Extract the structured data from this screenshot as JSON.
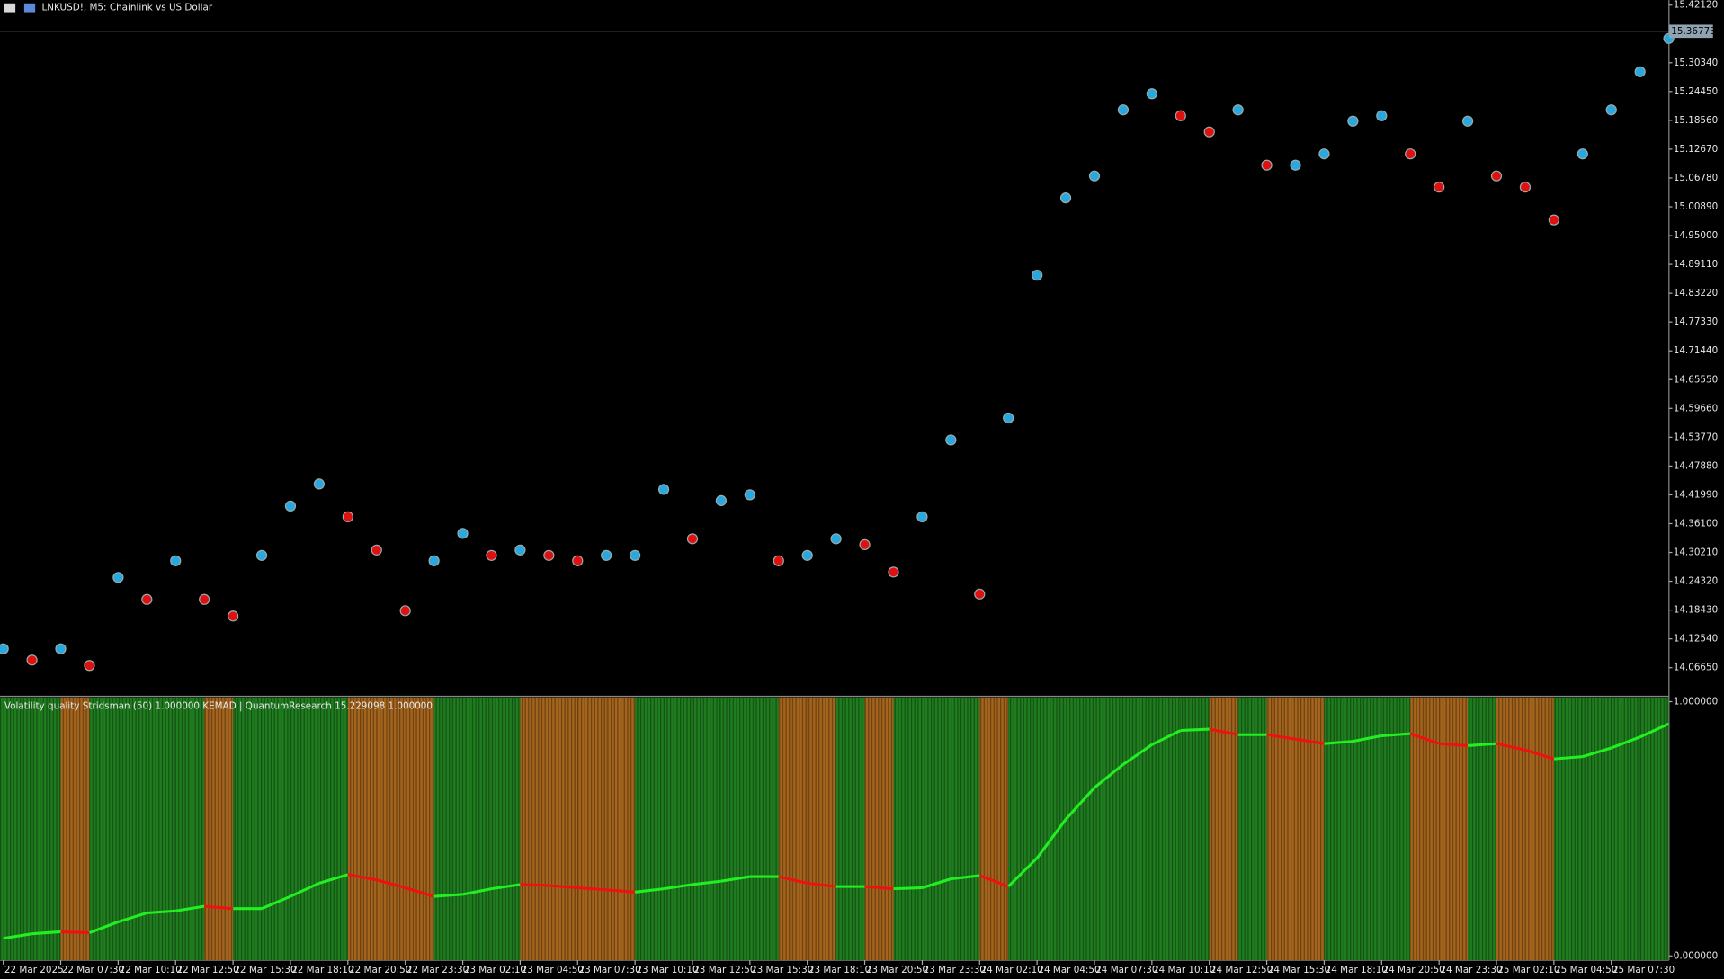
{
  "window": {
    "title": "LNKUSD!, M5:  Chainlink vs US Dollar"
  },
  "chart_data": [
    {
      "type": "scatter",
      "values": [
        14.105,
        14.082,
        14.105,
        14.071,
        14.251,
        14.206,
        14.285,
        14.206,
        14.172,
        14.296,
        14.397,
        14.442,
        14.375,
        14.307,
        14.183,
        14.285,
        14.341,
        14.296,
        14.307,
        14.296,
        14.285,
        14.296,
        14.296,
        14.431,
        14.33,
        14.408,
        14.42,
        14.285,
        14.296,
        14.33,
        14.318,
        14.262,
        14.375,
        14.532,
        14.217,
        14.577,
        14.869,
        15.027,
        15.072,
        15.207,
        15.24,
        15.195,
        15.162,
        15.207,
        15.094,
        15.094,
        15.117,
        15.184,
        15.195,
        15.117,
        15.049,
        15.184,
        15.072,
        15.049,
        14.982,
        15.117,
        15.207,
        15.285,
        15.353
      ],
      "up_color": "#29a8e0",
      "down_color": "#e01010",
      "ylim": [
        14.0103,
        15.4315
      ],
      "yticks": [
        {
          "value": 15.4212,
          "label": "15.42120"
        },
        {
          "value": 15.3034,
          "label": "15.30340"
        },
        {
          "value": 15.2445,
          "label": "15.24450"
        },
        {
          "value": 15.1856,
          "label": "15.18560"
        },
        {
          "value": 15.1267,
          "label": "15.12670"
        },
        {
          "value": 15.0678,
          "label": "15.06780"
        },
        {
          "value": 15.0089,
          "label": "15.00890"
        },
        {
          "value": 14.95,
          "label": "14.95000"
        },
        {
          "value": 14.8911,
          "label": "14.89110"
        },
        {
          "value": 14.8322,
          "label": "14.83220"
        },
        {
          "value": 14.7733,
          "label": "14.77330"
        },
        {
          "value": 14.7144,
          "label": "14.71440"
        },
        {
          "value": 14.6555,
          "label": "14.65550"
        },
        {
          "value": 14.5966,
          "label": "14.59660"
        },
        {
          "value": 14.5377,
          "label": "14.53770"
        },
        {
          "value": 14.4788,
          "label": "14.47880"
        },
        {
          "value": 14.4199,
          "label": "14.41990"
        },
        {
          "value": 14.361,
          "label": "14.36100"
        },
        {
          "value": 14.3021,
          "label": "14.30210"
        },
        {
          "value": 14.2432,
          "label": "14.24320"
        },
        {
          "value": 14.1843,
          "label": "14.18430"
        },
        {
          "value": 14.1254,
          "label": "14.12540"
        },
        {
          "value": 14.0665,
          "label": "14.06650"
        }
      ],
      "last_price": 15.36773
    },
    {
      "type": "line",
      "title": "Volatility quality Stridsman (50) 1.000000 KEMAD | QuantumResearch 15.229098 1.000000",
      "categories": [
        "22 Mar 2025",
        null,
        "22 Mar 07:30",
        null,
        "22 Mar 10:10",
        null,
        "22 Mar 12:50",
        null,
        "22 Mar 15:30",
        null,
        "22 Mar 18:10",
        null,
        "22 Mar 20:50",
        null,
        "22 Mar 23:30",
        null,
        "23 Mar 02:10",
        null,
        "23 Mar 04:50",
        null,
        "23 Mar 07:30",
        null,
        "23 Mar 10:10",
        null,
        "23 Mar 12:50",
        null,
        "23 Mar 15:30",
        null,
        "23 Mar 18:10",
        null,
        "23 Mar 20:50",
        null,
        "23 Mar 23:30",
        null,
        "24 Mar 02:10",
        null,
        "24 Mar 04:50",
        null,
        "24 Mar 07:30",
        null,
        "24 Mar 10:10",
        null,
        "24 Mar 12:50",
        null,
        "24 Mar 15:30",
        null,
        "24 Mar 18:10",
        null,
        "24 Mar 20:50",
        null,
        "24 Mar 23:30",
        null,
        "25 Mar 02:10",
        null,
        "25 Mar 04:50",
        null,
        "25 Mar 07:30",
        null,
        null
      ],
      "values": [
        0.069,
        0.087,
        0.095,
        0.091,
        0.134,
        0.169,
        0.177,
        0.195,
        0.186,
        0.186,
        0.234,
        0.286,
        0.32,
        0.299,
        0.268,
        0.234,
        0.242,
        0.264,
        0.281,
        0.277,
        0.268,
        0.26,
        0.251,
        0.264,
        0.281,
        0.294,
        0.312,
        0.312,
        0.286,
        0.273,
        0.273,
        0.264,
        0.268,
        0.303,
        0.316,
        0.273,
        0.385,
        0.537,
        0.662,
        0.753,
        0.831,
        0.887,
        0.892,
        0.87,
        0.87,
        0.853,
        0.835,
        0.844,
        0.866,
        0.874,
        0.835,
        0.827,
        0.835,
        0.81,
        0.775,
        0.784,
        0.818,
        0.861,
        0.913
      ],
      "up_color": "#22ee22",
      "down_color": "#ee1111",
      "up_band_color": "#1f7d1f",
      "down_band_color": "#a5641c",
      "ylim": [
        -0.017,
        1.017
      ],
      "yticks": [
        {
          "value": 1,
          "label": "1.000000"
        },
        {
          "value": 0,
          "label": "0.000000"
        }
      ]
    }
  ]
}
